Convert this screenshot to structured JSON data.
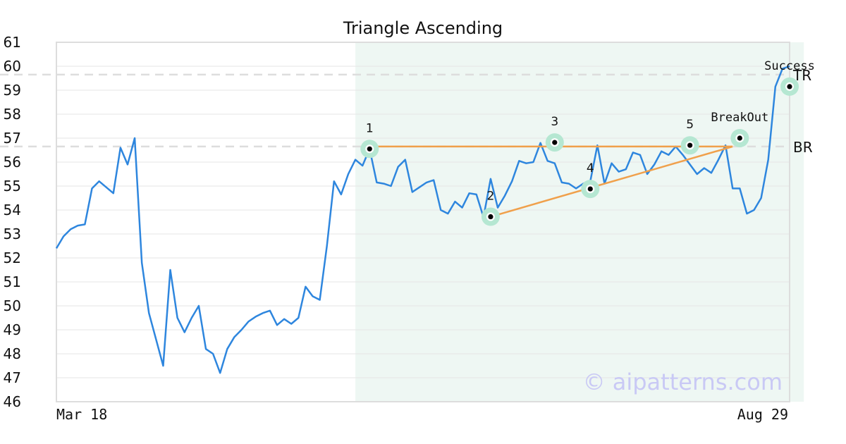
{
  "chart_data": {
    "type": "line",
    "title": "Triangle Ascending",
    "ylim": [
      46,
      61
    ],
    "y_ticks": [
      "46",
      "47",
      "48",
      "49",
      "50",
      "51",
      "52",
      "53",
      "54",
      "55",
      "56",
      "57",
      "58",
      "59",
      "60",
      "61"
    ],
    "x_labels": {
      "start": "Mar 18",
      "end": "Aug 29"
    },
    "grid": true,
    "series": [
      {
        "color": "#2e86de",
        "values": [
          52.4,
          52.9,
          53.2,
          53.35,
          53.4,
          54.9,
          55.2,
          54.95,
          54.7,
          56.6,
          55.9,
          57.0,
          51.8,
          49.7,
          48.6,
          47.5,
          51.5,
          49.5,
          48.9,
          49.5,
          50.0,
          48.2,
          48.0,
          47.2,
          48.2,
          48.7,
          49.0,
          49.35,
          49.55,
          49.7,
          49.8,
          49.2,
          49.45,
          49.25,
          49.5,
          50.8,
          50.4,
          50.25,
          52.5,
          55.2,
          54.65,
          55.5,
          56.1,
          55.85,
          56.55,
          55.15,
          55.1,
          55.0,
          55.8,
          56.1,
          54.75,
          54.95,
          55.15,
          55.25,
          54.0,
          53.85,
          54.35,
          54.1,
          54.7,
          54.65,
          53.7,
          55.3,
          54.1,
          54.6,
          55.2,
          56.05,
          55.95,
          56.0,
          56.8,
          56.05,
          55.95,
          55.15,
          55.1,
          54.9,
          55.1,
          55.2,
          56.7,
          55.1,
          55.95,
          55.6,
          55.7,
          56.4,
          56.3,
          55.5,
          55.9,
          56.45,
          56.3,
          56.65,
          56.3,
          55.9,
          55.5,
          55.75,
          55.55,
          56.1,
          56.7,
          54.9,
          54.9,
          53.85,
          54.0,
          54.5,
          56.1,
          59.15,
          59.9,
          60.0
        ]
      }
    ],
    "pattern_region": {
      "start_index": 42,
      "end_index": 105,
      "color": "#eef7f3"
    },
    "levels": [
      {
        "name": "TR",
        "value": 59.65
      },
      {
        "name": "BR",
        "value": 56.65
      }
    ],
    "trendlines": [
      {
        "from": {
          "index": 44,
          "value": 56.65
        },
        "to": {
          "index": 95,
          "value": 56.65
        },
        "color": "#f0a04b"
      },
      {
        "from": {
          "index": 61,
          "value": 53.72
        },
        "to": {
          "index": 95,
          "value": 56.65
        },
        "color": "#f0a04b"
      }
    ],
    "markers": [
      {
        "label": "1",
        "index": 44,
        "value": 56.55,
        "label_style": "sans"
      },
      {
        "label": "2",
        "index": 61,
        "value": 53.72,
        "label_style": "sans"
      },
      {
        "label": "3",
        "index": 70,
        "value": 56.82,
        "label_style": "sans"
      },
      {
        "label": "4",
        "index": 75,
        "value": 54.88,
        "label_style": "sans"
      },
      {
        "label": "5",
        "index": 89,
        "value": 56.7,
        "label_style": "sans"
      },
      {
        "label": "BreakOut",
        "index": 96,
        "value": 57.0,
        "label_style": "mono"
      },
      {
        "label": "Success",
        "index": 103,
        "value": 59.15,
        "label_style": "mono"
      }
    ],
    "watermark": "© aipatterns.com"
  }
}
